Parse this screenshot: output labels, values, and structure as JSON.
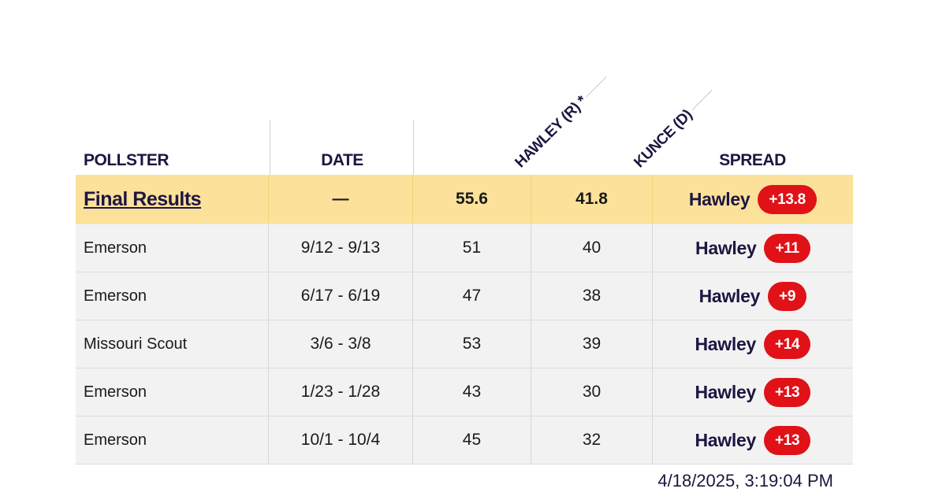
{
  "header": {
    "pollster": "POLLSTER",
    "date": "DATE",
    "candidate1": "HAWLEY (R) *",
    "candidate2": "KUNCE (D)",
    "spread": "SPREAD"
  },
  "rows": [
    {
      "pollster": "Final Results",
      "date": "—",
      "c1": "55.6",
      "c2": "41.8",
      "leader": "Hawley",
      "margin": "+13.8"
    },
    {
      "pollster": "Emerson",
      "date": "9/12 - 9/13",
      "c1": "51",
      "c2": "40",
      "leader": "Hawley",
      "margin": "+11"
    },
    {
      "pollster": "Emerson",
      "date": "6/17 - 6/19",
      "c1": "47",
      "c2": "38",
      "leader": "Hawley",
      "margin": "+9"
    },
    {
      "pollster": "Missouri Scout",
      "date": "3/6 - 3/8",
      "c1": "53",
      "c2": "39",
      "leader": "Hawley",
      "margin": "+14"
    },
    {
      "pollster": "Emerson",
      "date": "1/23 - 1/28",
      "c1": "43",
      "c2": "30",
      "leader": "Hawley",
      "margin": "+13"
    },
    {
      "pollster": "Emerson",
      "date": "10/1 - 10/4",
      "c1": "45",
      "c2": "32",
      "leader": "Hawley",
      "margin": "+13"
    }
  ],
  "timestamp": "4/18/2025, 3:19:04 PM",
  "colors": {
    "final_row_bg": "#fbe19a",
    "row_bg": "#f2f2f2",
    "badge_red": "#e01218",
    "header_text": "#1e1540"
  }
}
